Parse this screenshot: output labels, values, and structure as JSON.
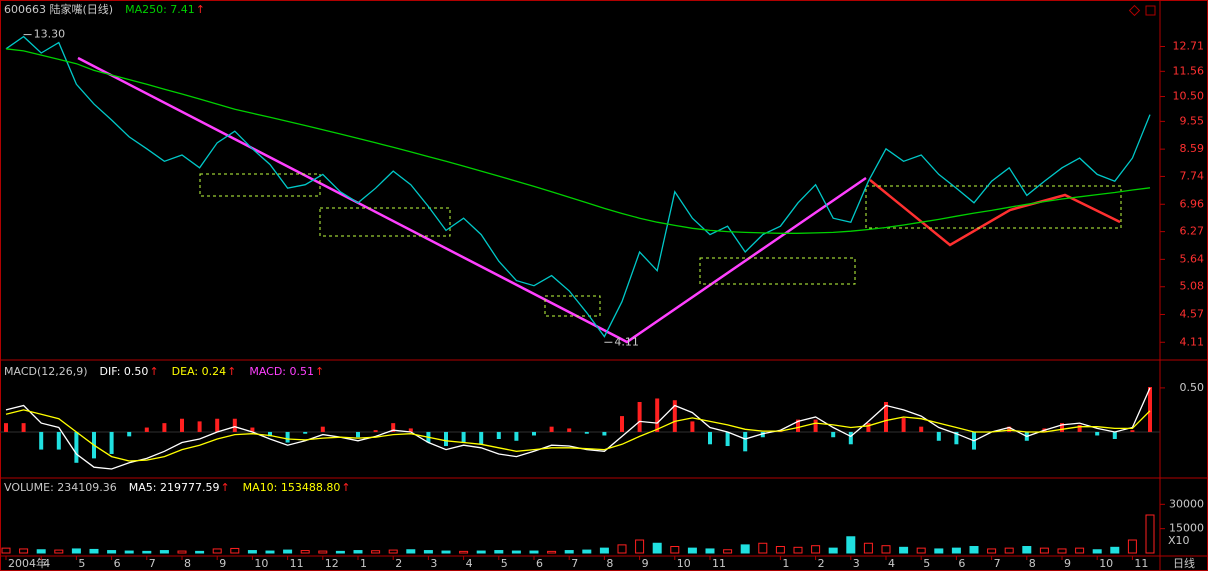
{
  "chart_data": [
    {
      "type": "line",
      "title": "600663 陆家嘴(日线)",
      "arrow": "↑",
      "log_scale": true,
      "ylim": [
        3.96,
        14.17
      ],
      "yticks": [
        12.71,
        11.56,
        {
          "value": 10.5,
          "label": "10.50"
        },
        9.55,
        8.59,
        7.74,
        6.96,
        6.27,
        5.64,
        5.08,
        4.57,
        4.11
      ],
      "annotations": [
        {
          "label": "13.30",
          "value": 13.3
        },
        {
          "label": "4.11",
          "value": 4.11
        }
      ],
      "series": [
        {
          "color": "#00c8c8",
          "values": [
            12.6,
            13.2,
            12.4,
            12.9,
            11.0,
            10.2,
            9.6,
            9.0,
            8.6,
            8.2,
            8.4,
            8.0,
            8.8,
            9.2,
            8.6,
            8.1,
            7.4,
            7.5,
            7.8,
            7.3,
            7.0,
            7.4,
            7.9,
            7.5,
            6.9,
            6.3,
            6.6,
            6.2,
            5.6,
            5.2,
            5.1,
            5.3,
            5.0,
            4.6,
            4.2,
            4.8,
            5.8,
            5.4,
            7.3,
            6.6,
            6.2,
            6.4,
            5.8,
            6.2,
            6.4,
            7.0,
            7.5,
            6.6,
            6.5,
            7.6,
            8.6,
            8.2,
            8.4,
            7.8,
            7.4,
            7.0,
            7.6,
            8.0,
            7.2,
            7.6,
            8.0,
            8.3,
            7.8,
            7.6,
            8.3,
            9.8
          ]
        },
        {
          "name": "MA250: 7.41",
          "color": "#00d000",
          "values": [
            12.6,
            12.5,
            12.3,
            12.1,
            11.9,
            11.6,
            11.4,
            11.2,
            11.0,
            10.8,
            10.6,
            10.4,
            10.2,
            10.0,
            9.85,
            9.7,
            9.55,
            9.4,
            9.25,
            9.1,
            8.95,
            8.8,
            8.65,
            8.5,
            8.35,
            8.2,
            8.05,
            7.9,
            7.75,
            7.6,
            7.45,
            7.3,
            7.15,
            7.0,
            6.85,
            6.72,
            6.6,
            6.5,
            6.42,
            6.35,
            6.3,
            6.27,
            6.25,
            6.24,
            6.23,
            6.23,
            6.24,
            6.25,
            6.28,
            6.32,
            6.37,
            6.43,
            6.5,
            6.57,
            6.65,
            6.73,
            6.8,
            6.88,
            6.96,
            7.03,
            7.1,
            7.16,
            7.22,
            7.28,
            7.35,
            7.41
          ]
        }
      ]
    },
    {
      "type": "macd",
      "title": "MACD(12,26,9)",
      "ylim": [
        -0.5,
        0.76
      ],
      "yticks": [
        {
          "value": 0.5,
          "label": "0.50"
        }
      ],
      "series": [
        {
          "name": "DIF: 0.50",
          "color": "#ffffff",
          "values": [
            0.25,
            0.3,
            0.1,
            0.05,
            -0.25,
            -0.4,
            -0.42,
            -0.35,
            -0.3,
            -0.22,
            -0.12,
            -0.08,
            0.0,
            0.06,
            0.0,
            -0.08,
            -0.15,
            -0.1,
            -0.03,
            -0.06,
            -0.1,
            -0.05,
            0.02,
            0.0,
            -0.12,
            -0.2,
            -0.15,
            -0.18,
            -0.25,
            -0.28,
            -0.22,
            -0.15,
            -0.16,
            -0.2,
            -0.22,
            -0.05,
            0.12,
            0.1,
            0.3,
            0.22,
            0.05,
            0.0,
            -0.08,
            -0.02,
            0.02,
            0.12,
            0.17,
            0.05,
            -0.05,
            0.12,
            0.3,
            0.25,
            0.18,
            0.05,
            -0.02,
            -0.1,
            0.0,
            0.05,
            -0.05,
            0.02,
            0.08,
            0.1,
            0.04,
            0.0,
            0.05,
            0.5
          ]
        },
        {
          "name": "DEA: 0.24",
          "color": "#ffff00",
          "values": [
            0.2,
            0.25,
            0.2,
            0.15,
            0.0,
            -0.15,
            -0.28,
            -0.33,
            -0.32,
            -0.28,
            -0.2,
            -0.15,
            -0.08,
            -0.03,
            -0.02,
            -0.04,
            -0.08,
            -0.09,
            -0.07,
            -0.06,
            -0.07,
            -0.06,
            -0.03,
            -0.02,
            -0.06,
            -0.1,
            -0.12,
            -0.14,
            -0.18,
            -0.22,
            -0.2,
            -0.18,
            -0.18,
            -0.19,
            -0.2,
            -0.14,
            -0.05,
            0.03,
            0.12,
            0.16,
            0.12,
            0.08,
            0.03,
            0.01,
            0.01,
            0.05,
            0.1,
            0.08,
            0.05,
            0.07,
            0.13,
            0.17,
            0.15,
            0.1,
            0.05,
            0.0,
            0.0,
            0.02,
            0.0,
            0.0,
            0.03,
            0.06,
            0.06,
            0.04,
            0.04,
            0.24
          ]
        },
        {
          "name": "MACD: 0.51",
          "color": "#ff40ff",
          "up_color": "#ff2020",
          "down_color": "#20e0e0",
          "values": [
            0.1,
            0.1,
            -0.2,
            -0.2,
            -0.35,
            -0.3,
            -0.25,
            -0.05,
            0.05,
            0.1,
            0.15,
            0.12,
            0.15,
            0.15,
            0.05,
            -0.05,
            -0.12,
            -0.02,
            0.06,
            0.0,
            -0.06,
            0.02,
            0.1,
            0.04,
            -0.12,
            -0.16,
            -0.12,
            -0.14,
            -0.08,
            -0.1,
            -0.04,
            0.06,
            0.04,
            -0.02,
            -0.04,
            0.18,
            0.34,
            0.38,
            0.36,
            0.12,
            -0.14,
            -0.16,
            -0.22,
            -0.06,
            0.02,
            0.14,
            0.14,
            -0.06,
            -0.14,
            0.1,
            0.34,
            0.16,
            0.06,
            -0.1,
            -0.14,
            -0.2,
            0.0,
            0.06,
            -0.1,
            0.04,
            0.1,
            0.08,
            -0.04,
            -0.08,
            0.02,
            0.51
          ]
        }
      ]
    },
    {
      "type": "bar",
      "title": "VOLUME: 234109.36",
      "unit_label": "X10",
      "period_button": "日线",
      "legend": [
        {
          "name": "MA5: 219777.59",
          "color": "#ffffff"
        },
        {
          "name": "MA10: 153488.80",
          "color": "#ffff00"
        }
      ],
      "ylim": [
        0,
        43750
      ],
      "yticks": [
        30000,
        15000
      ],
      "up_color": "#ff2020",
      "down_color": "#20e0e0",
      "categories": [
        "2004年",
        null,
        "4",
        null,
        "5",
        null,
        "6",
        null,
        "7",
        null,
        "8",
        null,
        "9",
        null,
        "10",
        null,
        "11",
        null,
        "12",
        null,
        "1",
        null,
        "2",
        null,
        "3",
        null,
        "4",
        null,
        "5",
        null,
        "6",
        null,
        "7",
        null,
        "8",
        null,
        "9",
        null,
        "10",
        null,
        "11",
        null,
        null,
        null,
        "1",
        null,
        "2",
        null,
        "3",
        null,
        "4",
        null,
        "5",
        null,
        "6",
        null,
        "7",
        null,
        "8",
        null,
        "9",
        null,
        "10",
        null,
        "11",
        null
      ],
      "values": [
        3000,
        2500,
        2000,
        1800,
        2500,
        2200,
        1500,
        1200,
        1000,
        1500,
        1200,
        1000,
        2500,
        2800,
        1500,
        1200,
        1800,
        1500,
        1200,
        1000,
        1500,
        1400,
        1800,
        2000,
        1500,
        1200,
        1000,
        1200,
        1500,
        1200,
        1200,
        1000,
        1500,
        1800,
        3000,
        5000,
        8000,
        6000,
        4000,
        3000,
        2500,
        2000,
        5000,
        6000,
        4000,
        3500,
        4500,
        3000,
        10000,
        6000,
        4500,
        3500,
        3000,
        2500,
        3000,
        4000,
        2500,
        3000,
        4000,
        3000,
        2500,
        3000,
        2000,
        3500,
        8000,
        23411
      ]
    }
  ]
}
